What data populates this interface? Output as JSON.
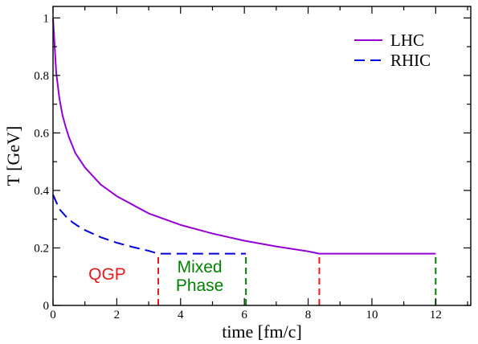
{
  "chart_data": {
    "type": "line",
    "xlabel": "time [fm/c]",
    "ylabel": "T [GeV]",
    "xlim": [
      0,
      13.1
    ],
    "ylim": [
      0,
      1.04
    ],
    "xticks": [
      "0",
      "2",
      "4",
      "6",
      "8",
      "10",
      "12"
    ],
    "yticks": [
      "0",
      "0.2",
      "0.4",
      "0.6",
      "0.8",
      "1"
    ],
    "grid": false,
    "legend_position": "top-right",
    "series": [
      {
        "name": "LHC",
        "color": "#9400d3",
        "dash": "solid",
        "points": [
          [
            0,
            1.0
          ],
          [
            0.1,
            0.81
          ],
          [
            0.2,
            0.72
          ],
          [
            0.3,
            0.66
          ],
          [
            0.4,
            0.62
          ],
          [
            0.5,
            0.585
          ],
          [
            0.7,
            0.53
          ],
          [
            1.0,
            0.48
          ],
          [
            1.5,
            0.42
          ],
          [
            2.0,
            0.38
          ],
          [
            2.5,
            0.35
          ],
          [
            3.0,
            0.32
          ],
          [
            3.5,
            0.3
          ],
          [
            4.0,
            0.28
          ],
          [
            5.0,
            0.25
          ],
          [
            6.0,
            0.225
          ],
          [
            7.0,
            0.205
          ],
          [
            8.0,
            0.188
          ],
          [
            8.35,
            0.18
          ],
          [
            12.0,
            0.18
          ]
        ]
      },
      {
        "name": "RHIC",
        "color": "#0000dd",
        "dash": "dashed",
        "points": [
          [
            0,
            0.385
          ],
          [
            0.2,
            0.335
          ],
          [
            0.4,
            0.31
          ],
          [
            0.6,
            0.29
          ],
          [
            0.8,
            0.275
          ],
          [
            1.0,
            0.262
          ],
          [
            1.5,
            0.237
          ],
          [
            2.0,
            0.218
          ],
          [
            2.5,
            0.203
          ],
          [
            3.0,
            0.19
          ],
          [
            3.3,
            0.18
          ],
          [
            6.05,
            0.18
          ]
        ]
      }
    ],
    "phase_markers": [
      {
        "x": 3.3,
        "color": "#e8191c"
      },
      {
        "x": 6.05,
        "color": "#008000"
      },
      {
        "x": 8.35,
        "color": "#e8191c"
      },
      {
        "x": 12.0,
        "color": "#008000"
      }
    ],
    "marker_top": 0.18,
    "annotations": [
      {
        "text": "QGP",
        "color": "#e8191c",
        "x": 1.7,
        "y": 0.09
      },
      {
        "text": "Mixed",
        "color": "#008000",
        "x": 4.6,
        "y": 0.115
      },
      {
        "text": "Phase",
        "color": "#008000",
        "x": 4.6,
        "y": 0.05
      }
    ]
  }
}
